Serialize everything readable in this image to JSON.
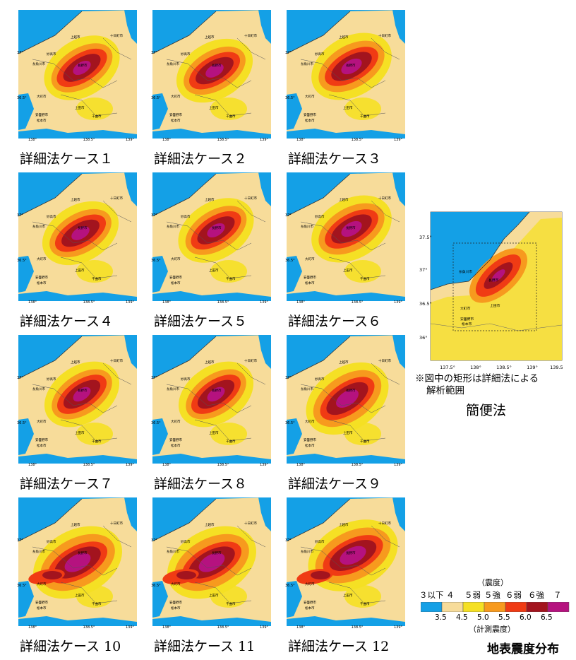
{
  "cases": [
    {
      "label": "詳細法ケース１",
      "variant": 0
    },
    {
      "label": "詳細法ケース２",
      "variant": 1
    },
    {
      "label": "詳細法ケース３",
      "variant": 2
    },
    {
      "label": "詳細法ケース４",
      "variant": 1
    },
    {
      "label": "詳細法ケース５",
      "variant": 0
    },
    {
      "label": "詳細法ケース６",
      "variant": 2
    },
    {
      "label": "詳細法ケース７",
      "variant": 3
    },
    {
      "label": "詳細法ケース８",
      "variant": 3
    },
    {
      "label": "詳細法ケース９",
      "variant": 4
    },
    {
      "label": "詳細法ケース 10",
      "variant": 5
    },
    {
      "label": "詳細法ケース 11",
      "variant": 5
    },
    {
      "label": "詳細法ケース 12",
      "variant": 6
    }
  ],
  "case_map_axes": {
    "x_ticks": [
      "138°",
      "138.5°",
      "139°"
    ],
    "y_ticks": [
      "37°",
      "36.5°"
    ]
  },
  "case_map_cities": [
    "十日町市",
    "上越市",
    "妙高市",
    "糸魚川市",
    "上田市",
    "千曲市",
    "長野市",
    "大町市",
    "安曇野市",
    "松本市"
  ],
  "simple_method": {
    "title": "簡便法",
    "note_line1": "※図中の矩形は詳細法による",
    "note_line2": "解析範囲",
    "x_ticks": [
      "137.5°",
      "138°",
      "138.5°",
      "139°",
      "139.5°"
    ],
    "y_ticks": [
      "37.5°",
      "37°",
      "36.5°",
      "36°"
    ],
    "cities": [
      "糸魚川市",
      "長野市",
      "大町市",
      "上田市",
      "安曇野市",
      "松本市"
    ]
  },
  "legend": {
    "title": "（震度）",
    "classes": [
      "３以下",
      "４",
      "５弱",
      "５強",
      "６弱",
      "６強",
      "７"
    ],
    "colors": [
      "#14a0e6",
      "#f7dc9a",
      "#f5e024",
      "#f79a1e",
      "#f03b14",
      "#a3141e",
      "#b5127f"
    ],
    "thresholds": [
      "3.5",
      "4.5",
      "5.0",
      "5.5",
      "6.0",
      "6.5"
    ],
    "subtitle": "（計測震度）"
  },
  "figure_title": "地表震度分布"
}
